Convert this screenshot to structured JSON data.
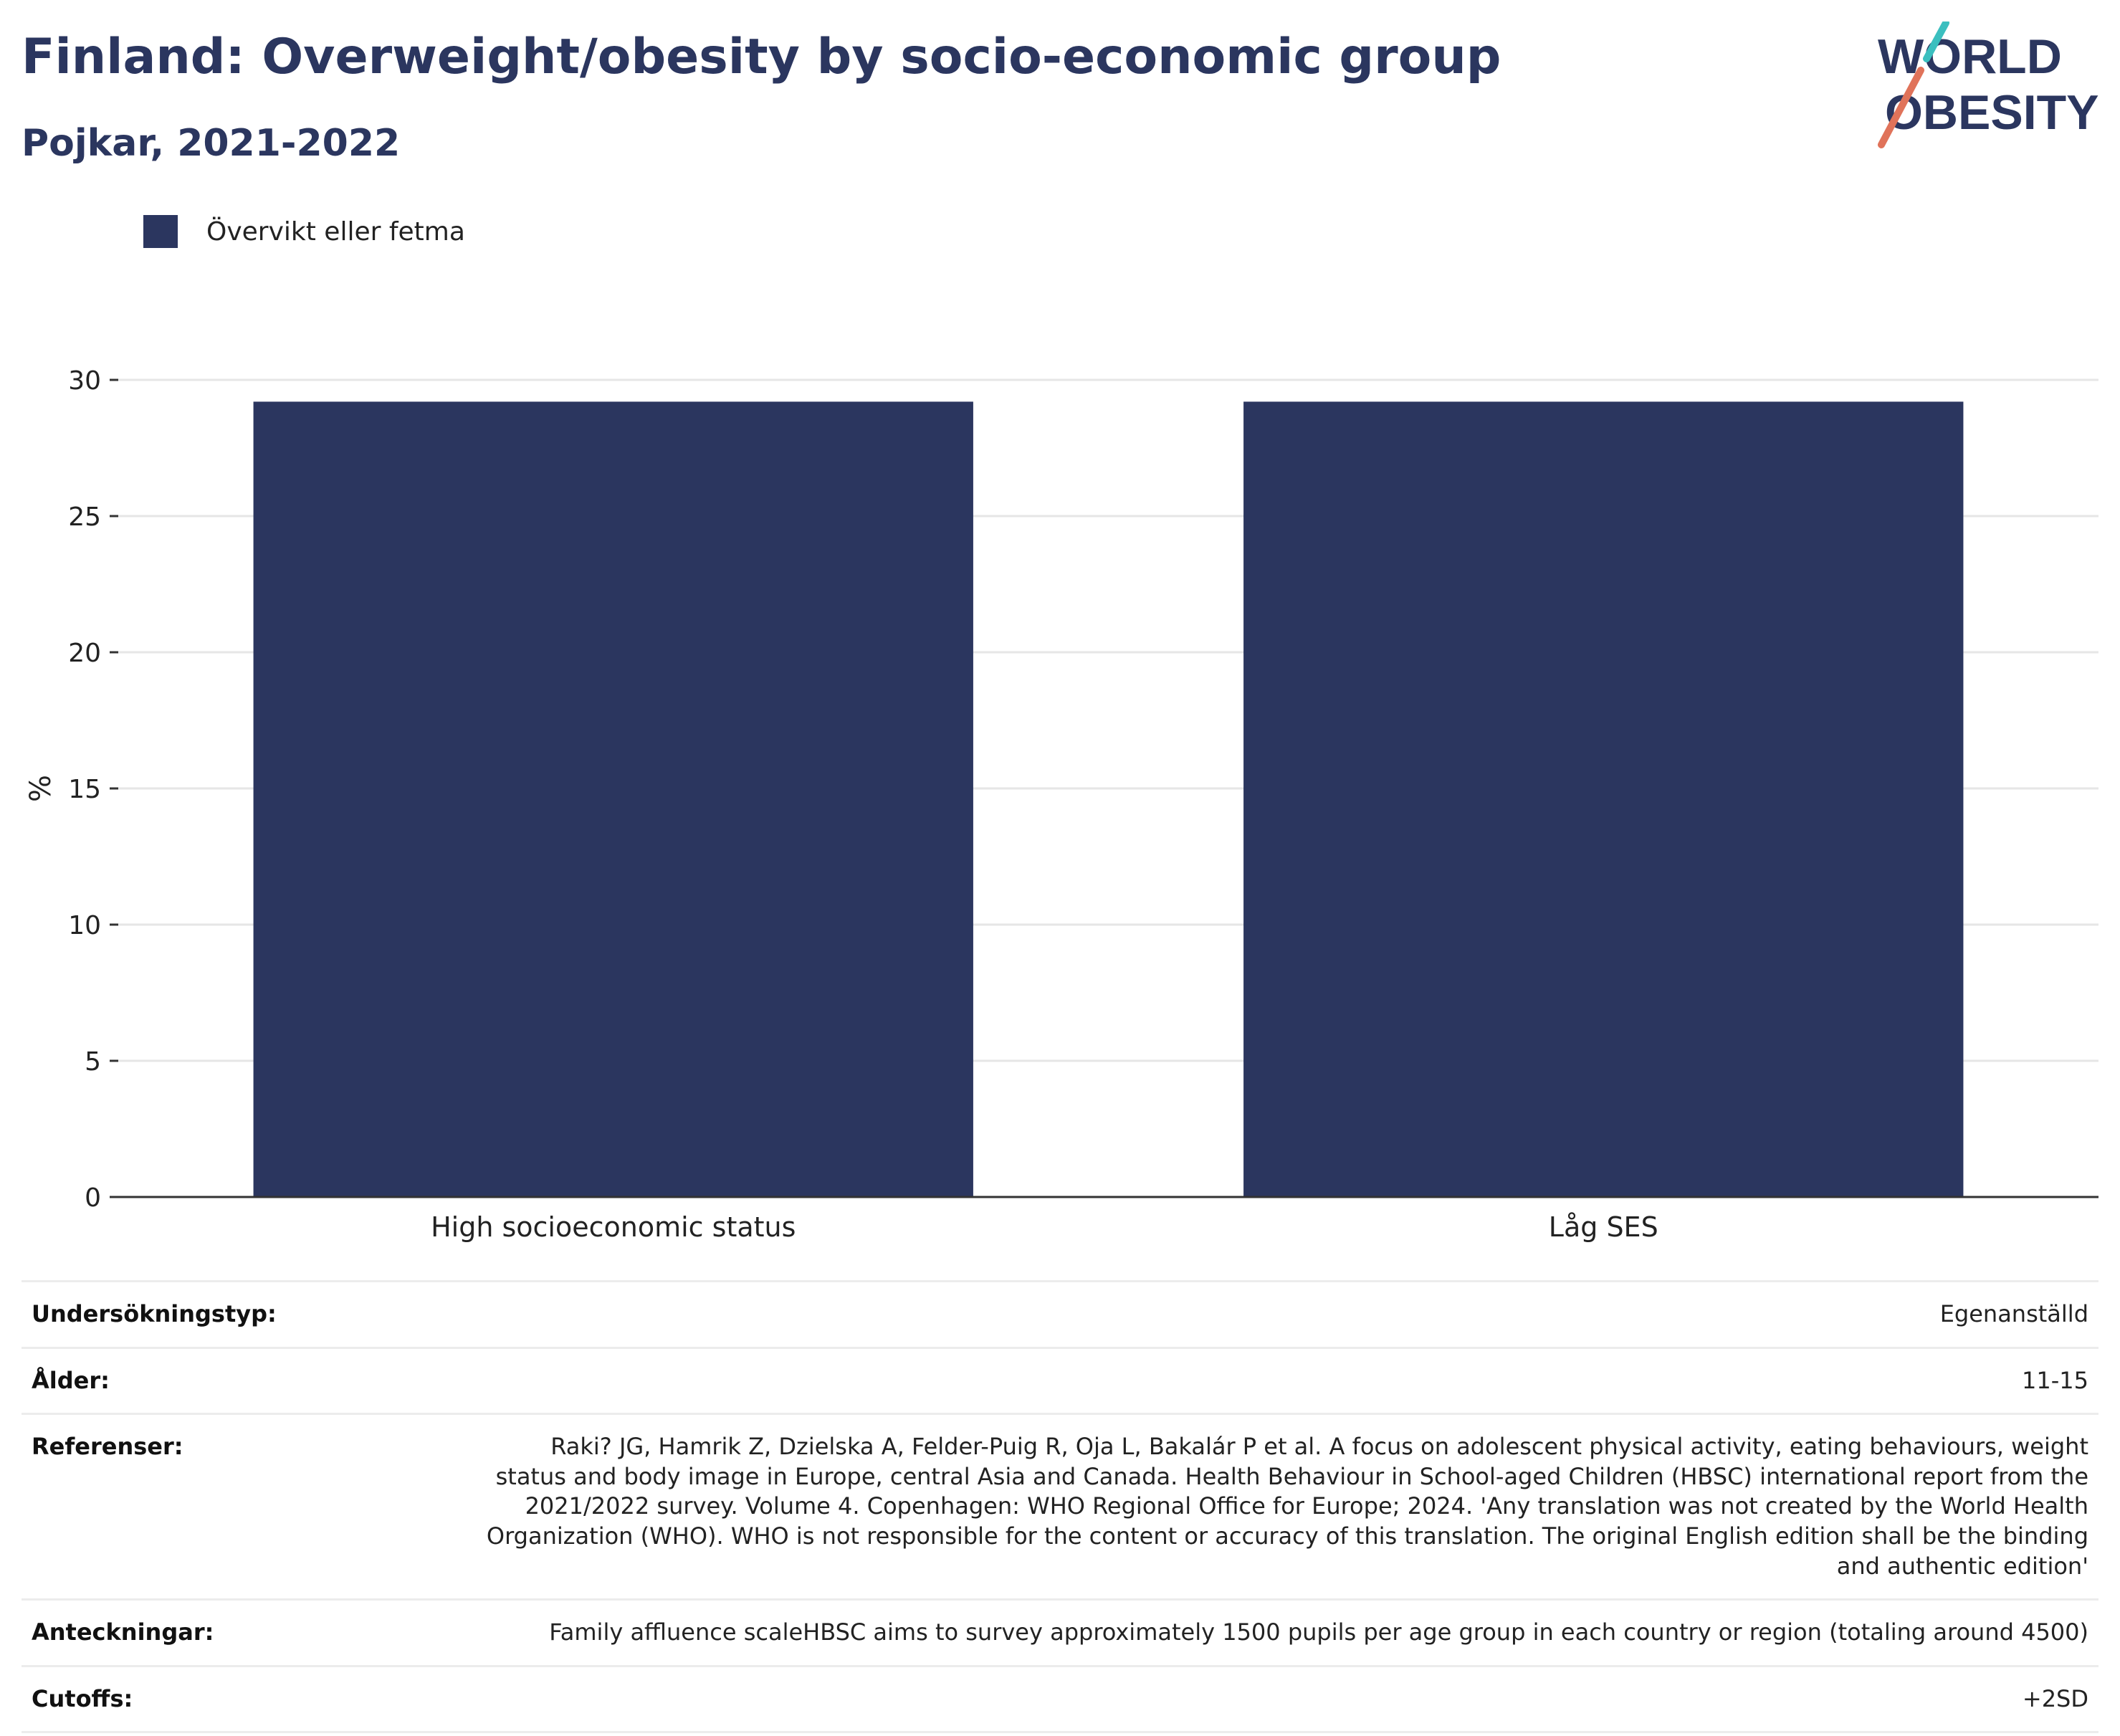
{
  "header": {
    "title": "Finland: Overweight/obesity by socio-economic group",
    "subtitle": "Pojkar, 2021-2022"
  },
  "logo": {
    "line1": "WORLD",
    "line2": "OBESITY",
    "colors": {
      "text": "#2b365f",
      "slash_top": "#3bbfbf",
      "slash_bottom": "#e0735a"
    }
  },
  "legend": {
    "label": "Övervikt eller fetma",
    "color": "#2b365f"
  },
  "chart_data": {
    "type": "bar",
    "categories": [
      "High socioeconomic status",
      "Låg SES"
    ],
    "series": [
      {
        "name": "Övervikt eller fetma",
        "values": [
          29.2,
          29.2
        ],
        "color": "#2b365f"
      }
    ],
    "ylabel": "%",
    "xlabel": "",
    "ylim": [
      0,
      30
    ],
    "yticks": [
      0,
      5,
      10,
      15,
      20,
      25,
      30
    ],
    "grid": true,
    "legend_position": "top-left"
  },
  "info": {
    "rows": [
      {
        "label": "Undersökningstyp:",
        "value": "Egenanställd"
      },
      {
        "label": "Ålder:",
        "value": "11-15"
      },
      {
        "label": "Referenser:",
        "value": "Raki? JG, Hamrik Z, Dzielska A, Felder-Puig R, Oja L, Bakalár P et al. A focus on adolescent physical activity, eating behaviours, weight status and body image in Europe, central Asia and Canada. Health Behaviour in School-aged Children (HBSC) international report from the 2021/2022 survey. Volume 4. Copenhagen: WHO Regional Office for Europe; 2024. 'Any translation was not created by the World Health Organization (WHO). WHO is not responsible for the content or accuracy of this translation. The original English edition shall be the binding and authentic edition'"
      },
      {
        "label": "Anteckningar:",
        "value": "Family affluence scaleHBSC aims to survey approximately 1500 pupils per age group in each country or region (totaling around 4500)"
      },
      {
        "label": "Cutoffs:",
        "value": "+2SD"
      }
    ]
  }
}
